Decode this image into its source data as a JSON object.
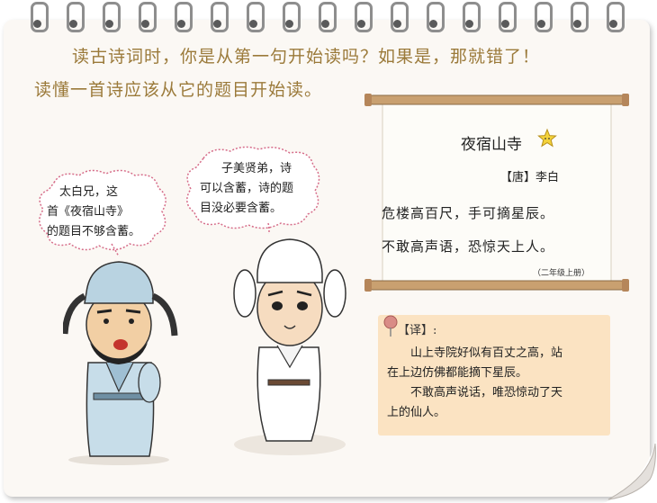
{
  "intro": {
    "line1": "读古诗词时，你是从第一句开始读吗？如果是，那就错了！",
    "line2": "读懂一首诗应该从它的题目开始读。"
  },
  "bubble_left": {
    "lines": [
      "太白兄，这",
      "首《夜宿山寺》",
      "的题目不够含蓄。"
    ]
  },
  "bubble_right": {
    "lines": [
      "子美贤弟，诗",
      "可以含蓄，诗的题",
      "目没必要含蓄。"
    ]
  },
  "poem": {
    "title": "夜宿山寺",
    "author": "【唐】李白",
    "lines": [
      "危楼高百尺，手可摘星辰。",
      "不敢高声语，恐惊天上人。"
    ],
    "source": "（二年级上册）"
  },
  "translation": {
    "label": "【译】:",
    "paragraphs": [
      [
        "山上寺院好似有百丈之高，站",
        "在上边仿佛都能摘下星辰。"
      ],
      [
        "不敢高声说话，唯恐惊动了天",
        "上的仙人。"
      ]
    ]
  },
  "colors": {
    "intro_text": "#9b7a3a",
    "scroll_paper": "#fdfcf8",
    "scroll_rod": "#c9a070",
    "translation_bg": "#fbe3c2",
    "pin": "#d98c86",
    "robe_left": "#c7dde9",
    "robe_right": "#ffffff"
  },
  "icons": [
    "star-icon",
    "pin-icon",
    "ring-binder-icon",
    "page-curl-icon"
  ]
}
